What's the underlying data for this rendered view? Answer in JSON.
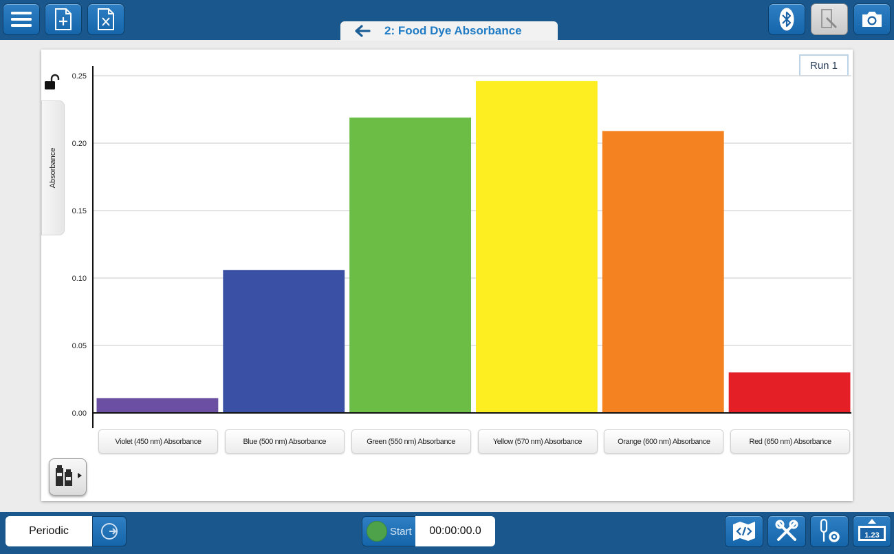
{
  "header": {
    "title": "2: Food Dye Absorbance",
    "left_icons": [
      "menu-icon",
      "new-file-icon",
      "delete-file-icon"
    ],
    "right_icons": [
      "bluetooth-icon",
      "annotate-icon",
      "camera-icon"
    ]
  },
  "graph": {
    "y_axis_title": "Absorbance",
    "run_label": "Run 1"
  },
  "bottom": {
    "mode_label": "Periodic",
    "start_label": "Start",
    "timer_value": "00:00:00.0",
    "meter_label": "1.23",
    "right_icons": [
      "code-map-icon",
      "tools-icon",
      "sensor-settings-icon",
      "meter-icon"
    ]
  },
  "colors": {
    "toolbar": "#19578c",
    "accent": "#1f7bc4",
    "start_green": "#4ea24a"
  },
  "chart_data": {
    "type": "bar",
    "categories": [
      "Violet (450 nm) Absorbance",
      "Blue (500 nm) Absorbance",
      "Green (550 nm) Absorbance",
      "Yellow (570 nm) Absorbance",
      "Orange (600 nm) Absorbance",
      "Red (650 nm) Absorbance"
    ],
    "values": [
      0.011,
      0.106,
      0.219,
      0.246,
      0.209,
      0.03
    ],
    "bar_colors": [
      "#6a4fa3",
      "#3a50a5",
      "#6cbd45",
      "#fcee21",
      "#f58220",
      "#e41f26"
    ],
    "ylabel": "Absorbance",
    "ylim": [
      0,
      0.25
    ],
    "yticks": [
      "0.00",
      "0.05",
      "0.10",
      "0.15",
      "0.20",
      "0.25"
    ],
    "grid": true
  }
}
